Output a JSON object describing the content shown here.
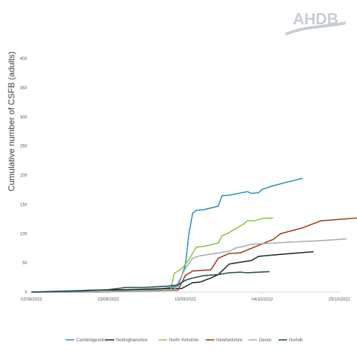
{
  "logo": {
    "text": "AHDB",
    "color": "#c9cdd1"
  },
  "chart_data": {
    "type": "line",
    "title": "",
    "xlabel": "",
    "ylabel": "Cumulative number of CSFB (adults)",
    "x_type": "date",
    "xlim": [
      "2022-08-02",
      "2022-10-25"
    ],
    "ylim": [
      0,
      400
    ],
    "yticks": [
      0,
      50,
      100,
      150,
      200,
      250,
      300,
      350,
      400
    ],
    "xticks": [
      "02/08/2022",
      "23/08/2022",
      "13/09/2022",
      "04/10/2022",
      "25/10/2022"
    ],
    "grid": false,
    "legend_position": "bottom",
    "series": [
      {
        "name": "Cambridgeshire",
        "color": "#2e8fc4",
        "points": [
          [
            "2022-08-02",
            0
          ],
          [
            "2022-08-07",
            1
          ],
          [
            "2022-08-12",
            2
          ],
          [
            "2022-08-17",
            3
          ],
          [
            "2022-08-22",
            3
          ],
          [
            "2022-08-27",
            3
          ],
          [
            "2022-09-01",
            4
          ],
          [
            "2022-09-06",
            5
          ],
          [
            "2022-09-11",
            10
          ],
          [
            "2022-09-13",
            45
          ],
          [
            "2022-09-14",
            100
          ],
          [
            "2022-09-15",
            135
          ],
          [
            "2022-09-16",
            140
          ],
          [
            "2022-09-18",
            141
          ],
          [
            "2022-09-22",
            147
          ],
          [
            "2022-09-23",
            165
          ],
          [
            "2022-09-25",
            166
          ],
          [
            "2022-09-30",
            172
          ],
          [
            "2022-10-01",
            169
          ],
          [
            "2022-10-03",
            170
          ],
          [
            "2022-10-04",
            176
          ],
          [
            "2022-10-07",
            182
          ],
          [
            "2022-10-10",
            187
          ],
          [
            "2022-10-15",
            195
          ]
        ]
      },
      {
        "name": "Nottinghamshire",
        "color": "#1f2b2a",
        "points": [
          [
            "2022-08-02",
            0
          ],
          [
            "2022-08-12",
            0
          ],
          [
            "2022-08-18",
            3
          ],
          [
            "2022-08-28",
            4
          ],
          [
            "2022-09-02",
            5
          ],
          [
            "2022-09-08",
            6
          ],
          [
            "2022-09-12",
            6
          ],
          [
            "2022-09-15",
            16
          ],
          [
            "2022-09-17",
            17
          ],
          [
            "2022-09-20",
            24
          ],
          [
            "2022-09-22",
            30
          ],
          [
            "2022-09-25",
            48
          ],
          [
            "2022-09-27",
            50
          ],
          [
            "2022-09-30",
            53
          ],
          [
            "2022-10-01",
            54
          ],
          [
            "2022-10-03",
            61
          ],
          [
            "2022-10-08",
            64
          ],
          [
            "2022-10-14",
            67
          ],
          [
            "2022-10-18",
            69
          ]
        ]
      },
      {
        "name": "North Yorkshire",
        "color": "#8dc63f",
        "points": [
          [
            "2022-08-02",
            0
          ],
          [
            "2022-08-12",
            0
          ],
          [
            "2022-08-22",
            1
          ],
          [
            "2022-09-05",
            2
          ],
          [
            "2022-09-09",
            3
          ],
          [
            "2022-09-10",
            32
          ],
          [
            "2022-09-12",
            40
          ],
          [
            "2022-09-14",
            55
          ],
          [
            "2022-09-15",
            66
          ],
          [
            "2022-09-16",
            77
          ],
          [
            "2022-09-18",
            78
          ],
          [
            "2022-09-22",
            84
          ],
          [
            "2022-09-23",
            96
          ],
          [
            "2022-09-25",
            102
          ],
          [
            "2022-09-29",
            117
          ],
          [
            "2022-09-30",
            122
          ],
          [
            "2022-10-02",
            122
          ],
          [
            "2022-10-04",
            126
          ],
          [
            "2022-10-07",
            127
          ]
        ]
      },
      {
        "name": "Herefordshire",
        "color": "#9c3d1b",
        "points": [
          [
            "2022-08-02",
            0
          ],
          [
            "2022-08-20",
            0
          ],
          [
            "2022-09-01",
            2
          ],
          [
            "2022-09-11",
            3
          ],
          [
            "2022-09-13",
            28
          ],
          [
            "2022-09-15",
            36
          ],
          [
            "2022-09-17",
            37
          ],
          [
            "2022-09-20",
            38
          ],
          [
            "2022-09-22",
            58
          ],
          [
            "2022-09-25",
            66
          ],
          [
            "2022-09-28",
            67
          ],
          [
            "2022-10-03",
            80
          ],
          [
            "2022-10-07",
            90
          ],
          [
            "2022-10-09",
            100
          ],
          [
            "2022-10-15",
            110
          ],
          [
            "2022-10-20",
            122
          ],
          [
            "2022-10-30",
            127
          ]
        ]
      },
      {
        "name": "Devon",
        "color": "#a5adb2",
        "points": [
          [
            "2022-08-02",
            0
          ],
          [
            "2022-08-15",
            0
          ],
          [
            "2022-08-30",
            2
          ],
          [
            "2022-09-10",
            4
          ],
          [
            "2022-09-13",
            40
          ],
          [
            "2022-09-15",
            58
          ],
          [
            "2022-09-17",
            62
          ],
          [
            "2022-09-20",
            65
          ],
          [
            "2022-09-25",
            70
          ],
          [
            "2022-09-27",
            76
          ],
          [
            "2022-09-29",
            78
          ],
          [
            "2022-10-01",
            82
          ],
          [
            "2022-10-05",
            83
          ],
          [
            "2022-10-10",
            85
          ],
          [
            "2022-10-20",
            88
          ],
          [
            "2022-10-27",
            91
          ]
        ]
      },
      {
        "name": "Norfolk",
        "color": "#1e4a48",
        "points": [
          [
            "2022-08-02",
            0
          ],
          [
            "2022-08-16",
            2
          ],
          [
            "2022-08-23",
            4
          ],
          [
            "2022-08-28",
            8
          ],
          [
            "2022-09-02",
            8
          ],
          [
            "2022-09-08",
            10
          ],
          [
            "2022-09-11",
            12
          ],
          [
            "2022-09-13",
            20
          ],
          [
            "2022-09-15",
            24
          ],
          [
            "2022-09-18",
            28
          ],
          [
            "2022-09-22",
            30
          ],
          [
            "2022-09-25",
            33
          ],
          [
            "2022-09-28",
            34
          ],
          [
            "2022-09-30",
            33
          ],
          [
            "2022-10-03",
            34
          ],
          [
            "2022-10-06",
            35
          ]
        ]
      }
    ]
  }
}
